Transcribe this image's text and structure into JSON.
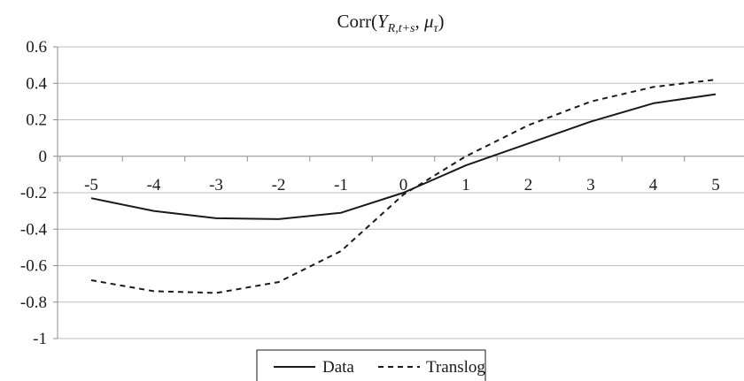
{
  "chart_data": {
    "type": "line",
    "title": "Corr(Y_R,t+s, μ_τ)",
    "title_parts": {
      "prefix": "Corr(",
      "var": "Y",
      "var_sub": "R,t+s",
      "sep": ", ",
      "var2": "μ",
      "var2_sub": "τ",
      "suffix": ")"
    },
    "xlabel": "",
    "ylabel": "",
    "x": [
      -5,
      -4,
      -3,
      -2,
      -1,
      0,
      1,
      2,
      3,
      4,
      5
    ],
    "x_tick_labels": [
      "-5",
      "-4",
      "-3",
      "-2",
      "-1",
      "0",
      "1",
      "2",
      "3",
      "4",
      "5"
    ],
    "ylim": [
      -1,
      0.6
    ],
    "y_ticks": [
      0.6,
      0.4,
      0.2,
      0,
      -0.2,
      -0.4,
      -0.6,
      -0.8,
      -1
    ],
    "y_tick_labels": [
      "0.6",
      "0.4",
      "0.2",
      "0",
      "-0.2",
      "-0.4",
      "-0.6",
      "-0.8",
      "-1"
    ],
    "grid": "horizontal",
    "legend_position": "bottom",
    "series": [
      {
        "name": "Data",
        "style": "solid",
        "values": [
          -0.23,
          -0.3,
          -0.34,
          -0.345,
          -0.31,
          -0.2,
          -0.05,
          0.07,
          0.19,
          0.29,
          0.34
        ]
      },
      {
        "name": "Translog",
        "style": "dashed",
        "values": [
          -0.68,
          -0.74,
          -0.75,
          -0.69,
          -0.52,
          -0.21,
          0.0,
          0.17,
          0.3,
          0.38,
          0.42
        ]
      }
    ]
  },
  "colors": {
    "line": "#1a1a1a",
    "grid": "#bdbdbd",
    "axis": "#8c8c8c"
  }
}
